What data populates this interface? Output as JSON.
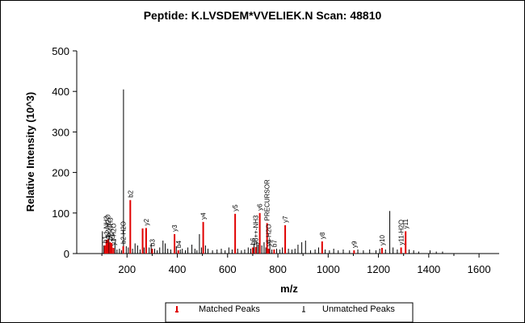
{
  "chart_data": {
    "type": "bar",
    "title": "Peptide: K.LVSDEM*VVELIEK.N  Scan: 48810",
    "xlabel": "m/z",
    "ylabel": "Relative Intensity (10^3)",
    "xlim": [
      0,
      1680
    ],
    "ylim": [
      0,
      500
    ],
    "xticks": [
      200,
      400,
      600,
      800,
      1000,
      1200,
      1400,
      1600
    ],
    "yticks": [
      0,
      100,
      200,
      300,
      400,
      500
    ],
    "grid": false,
    "legend_position": "bottom",
    "colors": {
      "matched": "#e00000",
      "unmatched": "#000000"
    },
    "series": [
      {
        "name": "Matched Peaks",
        "points": [
          {
            "x": 112,
            "y": 20,
            "label": "b1"
          },
          {
            "x": 118,
            "y": 33,
            "label": "y1-NH3"
          },
          {
            "x": 124,
            "y": 35,
            "label": "b2-H2O"
          },
          {
            "x": 133,
            "y": 28,
            "label": "b2-NH3"
          },
          {
            "x": 139,
            "y": 26,
            "label": "y1"
          },
          {
            "x": 146,
            "y": 14,
            "label": "y1-H2O"
          },
          {
            "x": 185,
            "y": 18,
            "label": "b2-H2O"
          },
          {
            "x": 213,
            "y": 132,
            "label": "b2"
          },
          {
            "x": 262,
            "y": 62,
            "label": ""
          },
          {
            "x": 276,
            "y": 63,
            "label": "y2"
          },
          {
            "x": 300,
            "y": 12,
            "label": "b3"
          },
          {
            "x": 389,
            "y": 48,
            "label": "y3"
          },
          {
            "x": 404,
            "y": 8,
            "label": "b4"
          },
          {
            "x": 503,
            "y": 78,
            "label": "y4"
          },
          {
            "x": 630,
            "y": 98,
            "label": "y5"
          },
          {
            "x": 700,
            "y": 15,
            "label": "b6"
          },
          {
            "x": 712,
            "y": 16,
            "label": "y6++-NH3"
          },
          {
            "x": 728,
            "y": 100,
            "label": "y6"
          },
          {
            "x": 757,
            "y": 75,
            "label": "PRECURSOR"
          },
          {
            "x": 763,
            "y": 12,
            "label": "y6-H2O"
          },
          {
            "x": 785,
            "y": 10,
            "label": "b7"
          },
          {
            "x": 829,
            "y": 70,
            "label": "y7"
          },
          {
            "x": 976,
            "y": 30,
            "label": "y8"
          },
          {
            "x": 1103,
            "y": 8,
            "label": "y9"
          },
          {
            "x": 1214,
            "y": 14,
            "label": "y10"
          },
          {
            "x": 1290,
            "y": 15,
            "label": "y11-H2O"
          },
          {
            "x": 1308,
            "y": 55,
            "label": "y11"
          }
        ]
      },
      {
        "name": "Unmatched Peaks",
        "points": [
          {
            "x": 102,
            "y": 55
          },
          {
            "x": 108,
            "y": 20
          },
          {
            "x": 128,
            "y": 45
          },
          {
            "x": 152,
            "y": 30
          },
          {
            "x": 160,
            "y": 10
          },
          {
            "x": 170,
            "y": 12
          },
          {
            "x": 178,
            "y": 8
          },
          {
            "x": 186,
            "y": 405
          },
          {
            "x": 197,
            "y": 18
          },
          {
            "x": 205,
            "y": 15
          },
          {
            "x": 222,
            "y": 12
          },
          {
            "x": 232,
            "y": 25
          },
          {
            "x": 242,
            "y": 20
          },
          {
            "x": 252,
            "y": 10
          },
          {
            "x": 268,
            "y": 15
          },
          {
            "x": 288,
            "y": 15
          },
          {
            "x": 296,
            "y": 25
          },
          {
            "x": 310,
            "y": 12
          },
          {
            "x": 320,
            "y": 8
          },
          {
            "x": 330,
            "y": 15
          },
          {
            "x": 343,
            "y": 32
          },
          {
            "x": 352,
            "y": 25
          },
          {
            "x": 362,
            "y": 12
          },
          {
            "x": 374,
            "y": 10
          },
          {
            "x": 396,
            "y": 18
          },
          {
            "x": 412,
            "y": 10
          },
          {
            "x": 420,
            "y": 12
          },
          {
            "x": 432,
            "y": 8
          },
          {
            "x": 442,
            "y": 15
          },
          {
            "x": 458,
            "y": 22
          },
          {
            "x": 470,
            "y": 12
          },
          {
            "x": 478,
            "y": 8
          },
          {
            "x": 488,
            "y": 48
          },
          {
            "x": 496,
            "y": 15
          },
          {
            "x": 512,
            "y": 20
          },
          {
            "x": 522,
            "y": 12
          },
          {
            "x": 540,
            "y": 8
          },
          {
            "x": 558,
            "y": 10
          },
          {
            "x": 575,
            "y": 12
          },
          {
            "x": 590,
            "y": 8
          },
          {
            "x": 605,
            "y": 15
          },
          {
            "x": 618,
            "y": 10
          },
          {
            "x": 640,
            "y": 12
          },
          {
            "x": 655,
            "y": 8
          },
          {
            "x": 668,
            "y": 10
          },
          {
            "x": 682,
            "y": 15
          },
          {
            "x": 692,
            "y": 12
          },
          {
            "x": 705,
            "y": 25
          },
          {
            "x": 716,
            "y": 30
          },
          {
            "x": 722,
            "y": 22
          },
          {
            "x": 736,
            "y": 20
          },
          {
            "x": 745,
            "y": 28
          },
          {
            "x": 752,
            "y": 15
          },
          {
            "x": 768,
            "y": 35
          },
          {
            "x": 776,
            "y": 10
          },
          {
            "x": 795,
            "y": 12
          },
          {
            "x": 808,
            "y": 10
          },
          {
            "x": 818,
            "y": 15
          },
          {
            "x": 842,
            "y": 12
          },
          {
            "x": 856,
            "y": 10
          },
          {
            "x": 868,
            "y": 12
          },
          {
            "x": 880,
            "y": 22
          },
          {
            "x": 895,
            "y": 28
          },
          {
            "x": 910,
            "y": 32
          },
          {
            "x": 930,
            "y": 8
          },
          {
            "x": 948,
            "y": 10
          },
          {
            "x": 962,
            "y": 15
          },
          {
            "x": 988,
            "y": 10
          },
          {
            "x": 1005,
            "y": 8
          },
          {
            "x": 1022,
            "y": 12
          },
          {
            "x": 1040,
            "y": 8
          },
          {
            "x": 1060,
            "y": 10
          },
          {
            "x": 1085,
            "y": 8
          },
          {
            "x": 1118,
            "y": 10
          },
          {
            "x": 1140,
            "y": 8
          },
          {
            "x": 1165,
            "y": 10
          },
          {
            "x": 1190,
            "y": 8
          },
          {
            "x": 1205,
            "y": 12
          },
          {
            "x": 1228,
            "y": 10
          },
          {
            "x": 1245,
            "y": 105
          },
          {
            "x": 1258,
            "y": 15
          },
          {
            "x": 1275,
            "y": 10
          },
          {
            "x": 1322,
            "y": 10
          },
          {
            "x": 1340,
            "y": 8
          },
          {
            "x": 1360,
            "y": 5
          },
          {
            "x": 1405,
            "y": 8
          },
          {
            "x": 1430,
            "y": 5
          },
          {
            "x": 1455,
            "y": 5
          }
        ]
      }
    ]
  }
}
